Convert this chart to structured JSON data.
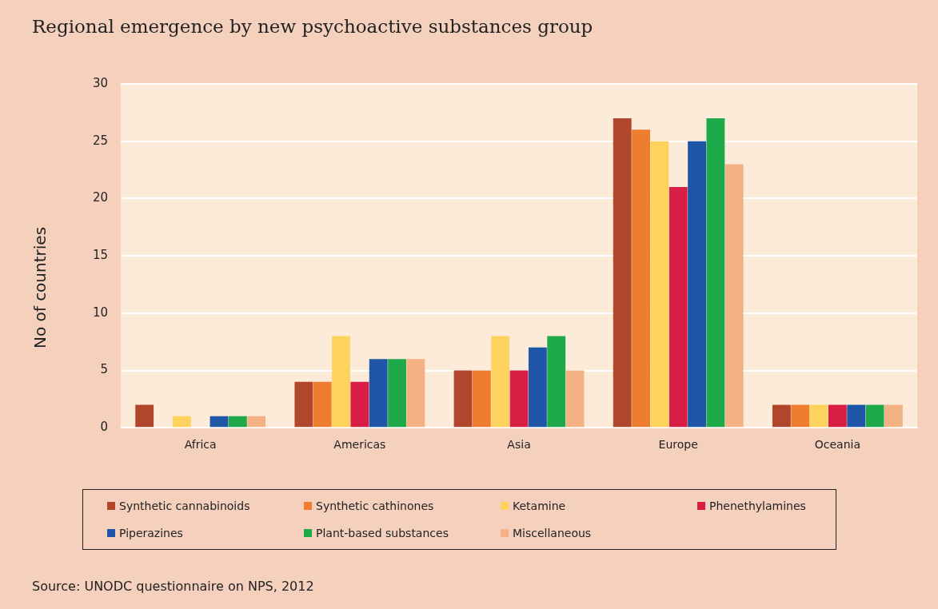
{
  "chart_data": {
    "type": "bar",
    "title": "Regional emergence by new psychoactive substances group",
    "ylabel": "No of countries",
    "categories": [
      "Africa",
      "Americas",
      "Asia",
      "Europe",
      "Oceania"
    ],
    "series": [
      {
        "name": "Synthetic cannabinoids",
        "color": "#b0462c",
        "values": [
          2,
          4,
          5,
          27,
          2
        ]
      },
      {
        "name": "Synthetic cathinones",
        "color": "#ee7d2f",
        "values": [
          0,
          4,
          5,
          26,
          2
        ]
      },
      {
        "name": "Ketamine",
        "color": "#fdd35d",
        "values": [
          1,
          8,
          8,
          25,
          2
        ]
      },
      {
        "name": "Phenethylamines",
        "color": "#d81e44",
        "values": [
          0,
          4,
          5,
          21,
          2
        ]
      },
      {
        "name": "Piperazines",
        "color": "#1f56a8",
        "values": [
          1,
          6,
          7,
          25,
          2
        ]
      },
      {
        "name": "Plant-based substances",
        "color": "#1ea94a",
        "values": [
          1,
          6,
          8,
          27,
          2
        ]
      },
      {
        "name": "Miscellaneous",
        "color": "#f4b183",
        "values": [
          1,
          6,
          5,
          23,
          2
        ]
      }
    ],
    "ylim": [
      0,
      30
    ],
    "yticks": [
      0,
      5,
      10,
      15,
      20,
      25,
      30
    ],
    "grid": "y",
    "legend": "bottom",
    "annotations": [
      "Source: UNODC questionnaire on NPS, 2012"
    ]
  }
}
